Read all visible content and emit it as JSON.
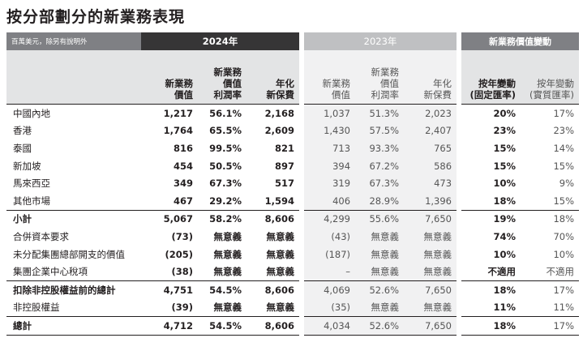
{
  "title": "按分部劃分的新業務表現",
  "header": {
    "unit_note": "百萬美元，除另有說明外",
    "group_2024": "2024年",
    "group_2023": "2023年",
    "group_vonb_change": "新業務價值變動"
  },
  "columns": {
    "c2024": [
      "新業務\n價值",
      "新業務\n價值\n利潤率",
      "年化\n新保費"
    ],
    "c2023": [
      "新業務\n價值",
      "新業務\n價值\n利潤率",
      "年化\n新保費"
    ],
    "change": [
      "按年變動\n(固定匯率)",
      "按年變動\n(實質匯率)"
    ]
  },
  "rows": [
    {
      "label": "中國內地",
      "v24": [
        "1,217",
        "56.1%",
        "2,168"
      ],
      "v23": [
        "1,037",
        "51.3%",
        "2,023"
      ],
      "chg": [
        "20%",
        "17%"
      ]
    },
    {
      "label": "香港",
      "v24": [
        "1,764",
        "65.5%",
        "2,609"
      ],
      "v23": [
        "1,430",
        "57.5%",
        "2,407"
      ],
      "chg": [
        "23%",
        "23%"
      ]
    },
    {
      "label": "泰國",
      "v24": [
        "816",
        "99.5%",
        "821"
      ],
      "v23": [
        "713",
        "93.3%",
        "765"
      ],
      "chg": [
        "15%",
        "14%"
      ]
    },
    {
      "label": "新加坡",
      "v24": [
        "454",
        "50.5%",
        "897"
      ],
      "v23": [
        "394",
        "67.2%",
        "586"
      ],
      "chg": [
        "15%",
        "15%"
      ]
    },
    {
      "label": "馬來西亞",
      "v24": [
        "349",
        "67.3%",
        "517"
      ],
      "v23": [
        "319",
        "67.3%",
        "473"
      ],
      "chg": [
        "10%",
        "9%"
      ]
    },
    {
      "label": "其他市場",
      "v24": [
        "467",
        "29.2%",
        "1,594"
      ],
      "v23": [
        "406",
        "28.9%",
        "1,396"
      ],
      "chg": [
        "18%",
        "15%"
      ]
    },
    {
      "label": "小計",
      "v24": [
        "5,067",
        "58.2%",
        "8,606"
      ],
      "v23": [
        "4,299",
        "55.6%",
        "7,650"
      ],
      "chg": [
        "19%",
        "18%"
      ],
      "style": "subt"
    },
    {
      "label": "合併資本要求",
      "v24": [
        "(73)",
        "無意義",
        "無意義"
      ],
      "v23": [
        "(43)",
        "無意義",
        "無意義"
      ],
      "chg": [
        "74%",
        "70%"
      ]
    },
    {
      "label": "未分配集團總部開支的價值",
      "v24": [
        "(205)",
        "無意義",
        "無意義"
      ],
      "v23": [
        "(187)",
        "無意義",
        "無意義"
      ],
      "chg": [
        "10%",
        "10%"
      ]
    },
    {
      "label": "集團企業中心稅項",
      "v24": [
        "(38)",
        "無意義",
        "無意義"
      ],
      "v23": [
        "–",
        "無意義",
        "無意義"
      ],
      "chg": [
        "不適用",
        "不適用"
      ]
    },
    {
      "label": "扣除非控股權益前的總計",
      "v24": [
        "4,751",
        "54.5%",
        "8,606"
      ],
      "v23": [
        "4,069",
        "52.6%",
        "7,650"
      ],
      "chg": [
        "18%",
        "17%"
      ],
      "style": "subt"
    },
    {
      "label": "非控股權益",
      "v24": [
        "(39)",
        "無意義",
        "無意義"
      ],
      "v23": [
        "(35)",
        "無意義",
        "無意義"
      ],
      "chg": [
        "11%",
        "11%"
      ]
    },
    {
      "label": "總計",
      "v24": [
        "4,712",
        "54.5%",
        "8,606"
      ],
      "v23": [
        "4,034",
        "52.6%",
        "7,650"
      ],
      "chg": [
        "18%",
        "17%"
      ],
      "style": "total"
    }
  ],
  "colors": {
    "dark_header": "#363536",
    "mid_header": "#7f8084",
    "light_header": "#bfc0c2",
    "shade": "#f1f1f2"
  }
}
